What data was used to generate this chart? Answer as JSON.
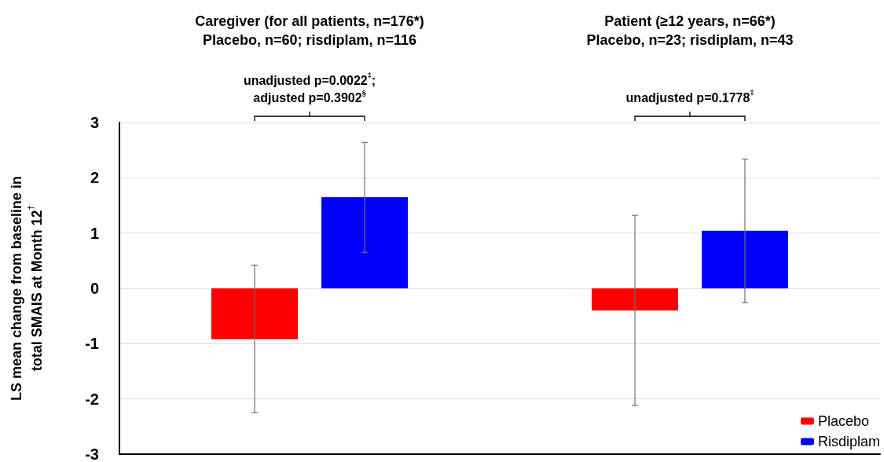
{
  "chart_data": {
    "type": "bar",
    "categories": [
      "Caregiver (for all patients, n=176*)\nPlacebo, n=60; risdiplam, n=116",
      "Patient (≥12 years, n=66*)\nPlacebo, n=23; risdiplam, n=43"
    ],
    "ylabel": "LS mean change from baseline in\ntotal SMAIS at Month 12$^{†}$",
    "series": [
      {
        "name": "Placebo",
        "color": "#ff0000",
        "values": [
          -0.92,
          -0.4
        ],
        "errors": [
          [
            -2.25,
            0.42
          ],
          [
            -2.12,
            1.32
          ]
        ]
      },
      {
        "name": "Risdiplam",
        "color": "#0000ff",
        "values": [
          1.65,
          1.04
        ],
        "errors": [
          [
            0.65,
            2.64
          ],
          [
            -0.26,
            2.34
          ]
        ]
      }
    ],
    "annotations": [
      "unadjusted p=0.0022$^{‡}$;\nadjusted p=0.3902$^{§}$",
      "unadjusted p=0.1778$^{‡}$"
    ],
    "ylim": [
      -3,
      3
    ],
    "yticks": [
      -3,
      -2,
      -1,
      0,
      1,
      2,
      3
    ],
    "grid": "y",
    "legend": "bottom right"
  }
}
